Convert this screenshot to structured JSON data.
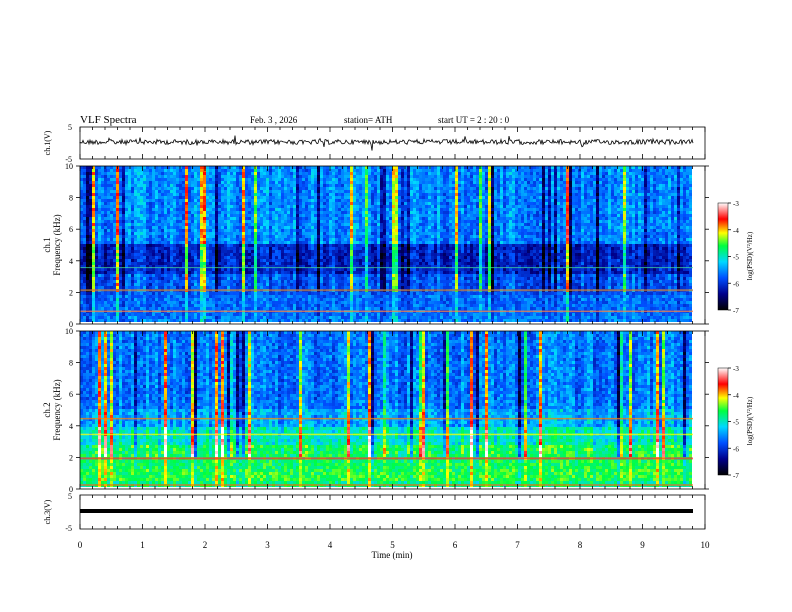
{
  "header": {
    "title": "VLF  Spectra",
    "date": "Feb. 3  , 2026",
    "station": "station= ATH",
    "start": "start  UT  =   2  : 20 : 0"
  },
  "chart_data": [
    {
      "type": "line",
      "panel": "ch1-waveform",
      "ylabel": "ch.1(V)",
      "ylim": [
        -5,
        5
      ],
      "yticks": [
        "5",
        "-5"
      ],
      "description_note": "noisy waveform around 0 V"
    },
    {
      "type": "heatmap",
      "panel": "ch1-spectrogram",
      "ylabel": "ch.1\nFrequency  (kHz)",
      "ylabel_line1": "ch.1",
      "ylabel_line2": "Frequency  (kHz)",
      "ylim": [
        0,
        10
      ],
      "yticks": [
        "0",
        "2",
        "4",
        "6",
        "8",
        "10"
      ],
      "colorbar": {
        "label": "log(PSD)(V²/Hz)",
        "range": [
          -7,
          -3
        ],
        "ticks": [
          "-3",
          "-4",
          "-5",
          "-6",
          "-7"
        ]
      }
    },
    {
      "type": "heatmap",
      "panel": "ch2-spectrogram",
      "ylabel_line1": "ch.2",
      "ylabel_line2": "Frequency  (kHz)",
      "ylim": [
        0,
        10
      ],
      "yticks": [
        "0",
        "2",
        "4",
        "6",
        "8",
        "10"
      ],
      "colorbar": {
        "label": "log(PSD)(V²/Hz)",
        "range": [
          -7,
          -3
        ],
        "ticks": [
          "-3",
          "-4",
          "-5",
          "-6",
          "-7"
        ]
      }
    },
    {
      "type": "line",
      "panel": "ch3-waveform",
      "ylabel": "ch.3(V)",
      "ylim": [
        -5,
        5
      ],
      "yticks": [
        "5",
        "-5"
      ],
      "xlabel": "Time  (min)",
      "xlim": [
        0,
        10
      ],
      "xticks": [
        "0",
        "1",
        "2",
        "3",
        "4",
        "5",
        "6",
        "7",
        "8",
        "9",
        "10"
      ]
    }
  ],
  "colors": {
    "spectrogram_low": "#00008b",
    "spectrogram_mid": "#00c8ff",
    "spectrogram_high": "#ff0000"
  }
}
